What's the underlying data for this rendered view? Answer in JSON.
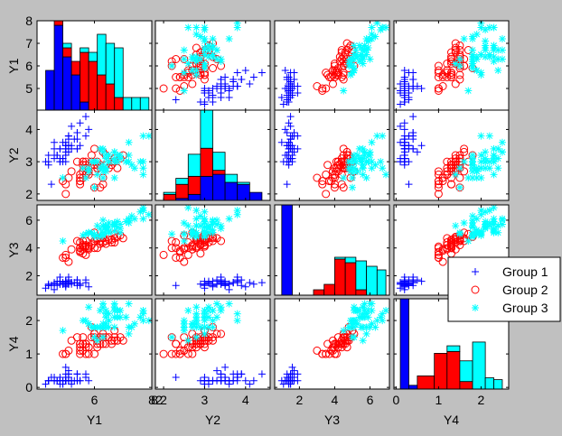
{
  "chart_data": {
    "type": "scatter",
    "subtype": "scatter-matrix with diagonal stacked histograms",
    "variables": [
      "Y1",
      "Y2",
      "Y3",
      "Y4"
    ],
    "axis_ranges": {
      "Y1": [
        4,
        8
      ],
      "Y2": [
        1.8,
        4.6
      ],
      "Y3": [
        0.6,
        7.1
      ],
      "Y4": [
        -0.05,
        2.65
      ]
    },
    "x_ticks": {
      "Y1": [
        6,
        8
      ],
      "Y2": [
        2,
        3,
        4
      ],
      "Y3": [
        2,
        4,
        6
      ],
      "Y4": [
        0,
        1,
        2
      ]
    },
    "y_ticks": {
      "Y1": [
        5,
        6,
        7,
        8
      ],
      "Y2": [
        2,
        3,
        4
      ],
      "Y3": [
        2,
        4,
        6
      ],
      "Y4": [
        0,
        1,
        2
      ]
    },
    "tick_labels": {
      "Y1_x": [
        "6",
        "8"
      ],
      "Y2_x": [
        "2",
        "3",
        "4"
      ],
      "Y3_x": [
        "2",
        "4",
        "6"
      ],
      "Y4_x": [
        "0",
        "1",
        "2"
      ],
      "Y1_y": [
        "5",
        "6",
        "7",
        "8"
      ],
      "Y2_y": [
        "2",
        "3",
        "4"
      ],
      "Y3_y": [
        "2",
        "4",
        "6"
      ],
      "Y4_y": [
        "0",
        "1",
        "2"
      ]
    },
    "corner_tick_labels": [
      "8",
      "2"
    ],
    "grid": false,
    "legend": {
      "placement": "right, beside Y3 row",
      "entries": [
        {
          "name": "Group 1",
          "marker": "plus",
          "color": "#0000ff"
        },
        {
          "name": "Group 2",
          "marker": "circle",
          "color": "#ff0000"
        },
        {
          "name": "Group 3",
          "marker": "star",
          "color": "#00ffff"
        }
      ]
    },
    "histogram_colors": [
      "#0000ff",
      "#ff0000",
      "#00ffff"
    ],
    "histograms": {
      "Y1": {
        "bin_edges": [
          4.3,
          4.6,
          4.9,
          5.2,
          5.5,
          5.8,
          6.1,
          6.4,
          6.7,
          7.0,
          7.3,
          7.6,
          7.9
        ],
        "group_counts": [
          [
            9,
            19,
            12,
            8,
            2,
            0,
            0,
            0,
            0,
            0,
            0,
            0
          ],
          [
            0,
            1,
            2,
            3,
            11,
            11,
            8,
            6,
            3,
            0,
            0,
            0
          ],
          [
            0,
            0,
            1,
            0,
            1,
            2,
            9,
            9,
            11,
            3,
            3,
            3
          ]
        ]
      },
      "Y2": {
        "bin_edges": [
          2.0,
          2.3,
          2.6,
          2.9,
          3.2,
          3.5,
          3.8,
          4.1,
          4.4
        ],
        "group_counts": [
          [
            0,
            1,
            3,
            12,
            13,
            9,
            8,
            4
          ],
          [
            3,
            7,
            9,
            14,
            2,
            0,
            0,
            0
          ],
          [
            1,
            3,
            11,
            19,
            9,
            4,
            1,
            0
          ]
        ]
      },
      "Y3": {
        "bin_edges": [
          1.0,
          1.6,
          2.2,
          2.8,
          3.4,
          4.0,
          4.6,
          5.2,
          5.8,
          6.4,
          6.9
        ],
        "group_counts": [
          [
            50,
            0,
            0,
            0,
            0,
            0,
            0,
            0,
            0,
            0
          ],
          [
            0,
            0,
            0,
            3,
            6,
            20,
            18,
            3,
            0,
            0
          ],
          [
            0,
            0,
            0,
            0,
            0,
            1,
            3,
            16,
            16,
            14
          ]
        ]
      },
      "Y4": {
        "bin_edges": [
          0.1,
          0.3,
          0.5,
          0.9,
          1.2,
          1.5,
          1.8,
          2.1,
          2.3,
          2.5
        ],
        "group_counts": [
          [
            48,
            2,
            0,
            0,
            0,
            0,
            0,
            0,
            0
          ],
          [
            0,
            0,
            7,
            19,
            20,
            4,
            0,
            0,
            0
          ],
          [
            0,
            0,
            0,
            0,
            3,
            11,
            25,
            6,
            5
          ]
        ]
      }
    },
    "series": [
      {
        "name": "Group 1",
        "marker": "plus",
        "color": "#0000ff",
        "points": [
          [
            5.1,
            3.5,
            1.4,
            0.2
          ],
          [
            4.9,
            3.0,
            1.4,
            0.2
          ],
          [
            4.7,
            3.2,
            1.3,
            0.2
          ],
          [
            4.6,
            3.1,
            1.5,
            0.2
          ],
          [
            5.0,
            3.6,
            1.4,
            0.2
          ],
          [
            5.4,
            3.9,
            1.7,
            0.4
          ],
          [
            4.6,
            3.4,
            1.4,
            0.3
          ],
          [
            5.0,
            3.4,
            1.5,
            0.2
          ],
          [
            4.4,
            2.9,
            1.4,
            0.2
          ],
          [
            4.9,
            3.1,
            1.5,
            0.1
          ],
          [
            5.4,
            3.7,
            1.5,
            0.2
          ],
          [
            4.8,
            3.4,
            1.6,
            0.2
          ],
          [
            4.8,
            3.0,
            1.4,
            0.1
          ],
          [
            4.3,
            3.0,
            1.1,
            0.1
          ],
          [
            5.8,
            4.0,
            1.2,
            0.2
          ],
          [
            5.7,
            4.4,
            1.5,
            0.4
          ],
          [
            5.4,
            3.9,
            1.3,
            0.4
          ],
          [
            5.1,
            3.5,
            1.4,
            0.3
          ],
          [
            5.7,
            3.8,
            1.7,
            0.3
          ],
          [
            5.1,
            3.8,
            1.5,
            0.3
          ],
          [
            5.4,
            3.4,
            1.7,
            0.2
          ],
          [
            5.1,
            3.7,
            1.5,
            0.4
          ],
          [
            4.6,
            3.6,
            1.0,
            0.2
          ],
          [
            5.1,
            3.3,
            1.7,
            0.5
          ],
          [
            4.8,
            3.4,
            1.9,
            0.2
          ],
          [
            5.0,
            3.0,
            1.6,
            0.2
          ],
          [
            5.0,
            3.4,
            1.6,
            0.4
          ],
          [
            5.2,
            3.5,
            1.5,
            0.2
          ],
          [
            5.2,
            3.4,
            1.4,
            0.2
          ],
          [
            4.7,
            3.2,
            1.6,
            0.2
          ],
          [
            4.8,
            3.1,
            1.6,
            0.2
          ],
          [
            5.4,
            3.4,
            1.5,
            0.4
          ],
          [
            5.2,
            4.1,
            1.5,
            0.1
          ],
          [
            5.5,
            4.2,
            1.4,
            0.2
          ],
          [
            4.9,
            3.1,
            1.5,
            0.2
          ],
          [
            5.0,
            3.2,
            1.2,
            0.2
          ],
          [
            5.5,
            3.5,
            1.3,
            0.2
          ],
          [
            4.9,
            3.6,
            1.4,
            0.1
          ],
          [
            4.4,
            3.0,
            1.3,
            0.2
          ],
          [
            5.1,
            3.4,
            1.5,
            0.2
          ],
          [
            5.0,
            3.5,
            1.3,
            0.3
          ],
          [
            4.5,
            2.3,
            1.3,
            0.3
          ],
          [
            4.4,
            3.2,
            1.3,
            0.2
          ],
          [
            5.0,
            3.5,
            1.6,
            0.6
          ],
          [
            5.1,
            3.8,
            1.9,
            0.4
          ],
          [
            4.8,
            3.0,
            1.4,
            0.3
          ],
          [
            5.1,
            3.8,
            1.6,
            0.2
          ],
          [
            4.6,
            3.2,
            1.4,
            0.2
          ],
          [
            5.3,
            3.7,
            1.5,
            0.2
          ],
          [
            5.0,
            3.3,
            1.4,
            0.2
          ]
        ]
      },
      {
        "name": "Group 2",
        "marker": "circle",
        "color": "#ff0000",
        "points": [
          [
            7.0,
            3.2,
            4.7,
            1.4
          ],
          [
            6.4,
            3.2,
            4.5,
            1.5
          ],
          [
            6.9,
            3.1,
            4.9,
            1.5
          ],
          [
            5.5,
            2.3,
            4.0,
            1.3
          ],
          [
            6.5,
            2.8,
            4.6,
            1.5
          ],
          [
            5.7,
            2.8,
            4.5,
            1.3
          ],
          [
            6.3,
            3.3,
            4.7,
            1.6
          ],
          [
            4.9,
            2.4,
            3.3,
            1.0
          ],
          [
            6.6,
            2.9,
            4.6,
            1.3
          ],
          [
            5.2,
            2.7,
            3.9,
            1.4
          ],
          [
            5.0,
            2.0,
            3.5,
            1.0
          ],
          [
            5.9,
            3.0,
            4.2,
            1.5
          ],
          [
            6.0,
            2.2,
            4.0,
            1.0
          ],
          [
            6.1,
            2.9,
            4.7,
            1.4
          ],
          [
            5.6,
            2.9,
            3.6,
            1.3
          ],
          [
            6.7,
            3.1,
            4.4,
            1.4
          ],
          [
            5.6,
            3.0,
            4.5,
            1.5
          ],
          [
            5.8,
            2.7,
            4.1,
            1.0
          ],
          [
            6.2,
            2.2,
            4.5,
            1.5
          ],
          [
            5.6,
            2.5,
            3.9,
            1.1
          ],
          [
            5.9,
            3.2,
            4.8,
            1.8
          ],
          [
            6.1,
            2.8,
            4.0,
            1.3
          ],
          [
            6.3,
            2.5,
            4.9,
            1.5
          ],
          [
            6.1,
            2.8,
            4.7,
            1.2
          ],
          [
            6.4,
            2.9,
            4.3,
            1.3
          ],
          [
            6.6,
            3.0,
            4.4,
            1.4
          ],
          [
            6.8,
            2.8,
            4.8,
            1.4
          ],
          [
            6.7,
            3.0,
            5.0,
            1.7
          ],
          [
            6.0,
            2.9,
            4.5,
            1.5
          ],
          [
            5.7,
            2.6,
            3.5,
            1.0
          ],
          [
            5.5,
            2.4,
            3.8,
            1.1
          ],
          [
            5.5,
            2.4,
            3.7,
            1.0
          ],
          [
            5.8,
            2.7,
            3.9,
            1.2
          ],
          [
            6.0,
            2.7,
            5.1,
            1.6
          ],
          [
            5.4,
            3.0,
            4.5,
            1.5
          ],
          [
            6.0,
            3.4,
            4.5,
            1.6
          ],
          [
            6.7,
            3.1,
            4.7,
            1.5
          ],
          [
            6.3,
            2.3,
            4.4,
            1.3
          ],
          [
            5.6,
            3.0,
            4.1,
            1.3
          ],
          [
            5.5,
            2.5,
            4.0,
            1.3
          ],
          [
            5.5,
            2.6,
            4.4,
            1.2
          ],
          [
            6.1,
            3.0,
            4.6,
            1.4
          ],
          [
            5.8,
            2.6,
            4.0,
            1.2
          ],
          [
            5.0,
            2.3,
            3.3,
            1.0
          ],
          [
            5.6,
            2.7,
            4.2,
            1.3
          ],
          [
            5.7,
            3.0,
            4.2,
            1.2
          ],
          [
            5.7,
            2.9,
            4.2,
            1.3
          ],
          [
            6.2,
            2.9,
            4.3,
            1.3
          ],
          [
            5.1,
            2.5,
            3.0,
            1.1
          ],
          [
            5.7,
            2.8,
            4.1,
            1.3
          ]
        ]
      },
      {
        "name": "Group 3",
        "marker": "star",
        "color": "#00ffff",
        "points": [
          [
            6.3,
            3.3,
            6.0,
            2.5
          ],
          [
            5.8,
            2.7,
            5.1,
            1.9
          ],
          [
            7.1,
            3.0,
            5.9,
            2.1
          ],
          [
            6.3,
            2.9,
            5.6,
            1.8
          ],
          [
            6.5,
            3.0,
            5.8,
            2.2
          ],
          [
            7.6,
            3.0,
            6.6,
            2.1
          ],
          [
            4.9,
            2.5,
            4.5,
            1.7
          ],
          [
            7.3,
            2.9,
            6.3,
            1.8
          ],
          [
            6.7,
            2.5,
            5.8,
            1.8
          ],
          [
            7.2,
            3.6,
            6.1,
            2.5
          ],
          [
            6.5,
            3.2,
            5.1,
            2.0
          ],
          [
            6.4,
            2.7,
            5.3,
            1.9
          ],
          [
            6.8,
            3.0,
            5.5,
            2.1
          ],
          [
            5.7,
            2.5,
            5.0,
            2.0
          ],
          [
            5.8,
            2.8,
            5.1,
            2.4
          ],
          [
            6.4,
            3.2,
            5.3,
            2.3
          ],
          [
            6.5,
            3.0,
            5.5,
            1.8
          ],
          [
            7.7,
            3.8,
            6.7,
            2.2
          ],
          [
            7.7,
            2.6,
            6.9,
            2.3
          ],
          [
            6.0,
            2.2,
            5.0,
            1.5
          ],
          [
            6.9,
            3.2,
            5.7,
            2.3
          ],
          [
            5.6,
            2.8,
            4.9,
            2.0
          ],
          [
            7.7,
            2.8,
            6.7,
            2.0
          ],
          [
            6.3,
            2.7,
            4.9,
            1.8
          ],
          [
            6.7,
            3.3,
            5.7,
            2.1
          ],
          [
            7.2,
            3.2,
            6.0,
            1.8
          ],
          [
            6.2,
            2.8,
            4.8,
            1.8
          ],
          [
            6.1,
            3.0,
            4.9,
            1.8
          ],
          [
            6.4,
            2.8,
            5.6,
            2.1
          ],
          [
            7.2,
            3.0,
            5.8,
            1.6
          ],
          [
            7.4,
            2.8,
            6.1,
            1.9
          ],
          [
            7.9,
            3.8,
            6.4,
            2.0
          ],
          [
            6.4,
            2.8,
            5.6,
            2.2
          ],
          [
            6.3,
            2.8,
            5.1,
            1.5
          ],
          [
            6.1,
            2.6,
            5.6,
            1.4
          ],
          [
            7.7,
            3.0,
            6.1,
            2.3
          ],
          [
            6.3,
            3.4,
            5.6,
            2.4
          ],
          [
            6.4,
            3.1,
            5.5,
            1.8
          ],
          [
            6.0,
            3.0,
            4.8,
            1.8
          ],
          [
            6.9,
            3.1,
            5.4,
            2.1
          ],
          [
            6.7,
            3.1,
            5.6,
            2.4
          ],
          [
            6.9,
            3.1,
            5.1,
            2.3
          ],
          [
            5.8,
            2.7,
            5.1,
            1.9
          ],
          [
            6.8,
            3.2,
            5.9,
            2.3
          ],
          [
            6.7,
            3.3,
            5.7,
            2.5
          ],
          [
            6.7,
            3.0,
            5.2,
            2.3
          ],
          [
            6.3,
            2.5,
            5.0,
            1.9
          ],
          [
            6.5,
            3.0,
            5.2,
            2.0
          ],
          [
            6.2,
            3.4,
            5.4,
            2.3
          ],
          [
            5.9,
            3.0,
            5.1,
            1.8
          ]
        ]
      }
    ]
  }
}
